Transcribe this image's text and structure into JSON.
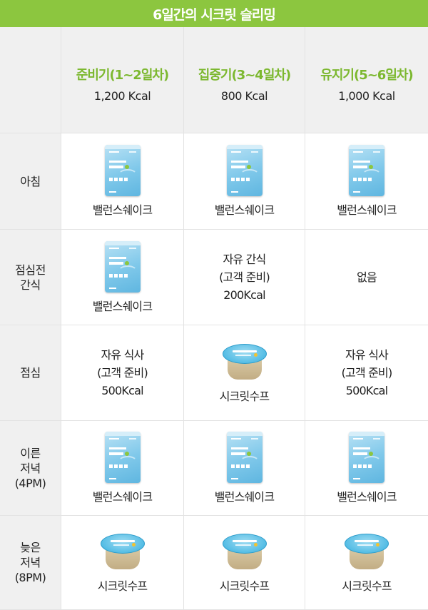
{
  "title": "6일간의 시크릿 슬리밍",
  "phases": [
    {
      "name": "준비기(1~2일차)",
      "kcal": "1,200 Kcal"
    },
    {
      "name": "집중기(3~4일차)",
      "kcal": "800 Kcal"
    },
    {
      "name": "유지기(5~6일차)",
      "kcal": "1,000 Kcal"
    }
  ],
  "rows": [
    {
      "label": [
        "아침"
      ],
      "cells": [
        {
          "kind": "shake",
          "text": "밸런스쉐이크"
        },
        {
          "kind": "shake",
          "text": "밸런스쉐이크"
        },
        {
          "kind": "shake",
          "text": "밸런스쉐이크"
        }
      ]
    },
    {
      "label": [
        "점심전",
        "간식"
      ],
      "cells": [
        {
          "kind": "shake",
          "text": "밸런스쉐이크"
        },
        {
          "kind": "free",
          "lines": [
            "자유 간식",
            "(고객 준비)",
            "200Kcal"
          ]
        },
        {
          "kind": "free",
          "lines": [
            "없음"
          ]
        }
      ]
    },
    {
      "label": [
        "점심"
      ],
      "cells": [
        {
          "kind": "free",
          "lines": [
            "자유 식사",
            "(고객 준비)",
            "500Kcal"
          ]
        },
        {
          "kind": "soup",
          "text": "시크릿수프"
        },
        {
          "kind": "free",
          "lines": [
            "자유 식사",
            "(고객 준비)",
            "500Kcal"
          ]
        }
      ]
    },
    {
      "label": [
        "이른",
        "저녁",
        "(4PM)"
      ],
      "cells": [
        {
          "kind": "shake",
          "text": "밸런스쉐이크"
        },
        {
          "kind": "shake",
          "text": "밸런스쉐이크"
        },
        {
          "kind": "shake",
          "text": "밸런스쉐이크"
        }
      ]
    },
    {
      "label": [
        "늦은",
        "저녁",
        "(8PM)"
      ],
      "cells": [
        {
          "kind": "soup",
          "text": "시크릿수프"
        },
        {
          "kind": "soup",
          "text": "시크릿수프"
        },
        {
          "kind": "soup",
          "text": "시크릿수프"
        }
      ]
    }
  ],
  "colors": {
    "accent": "#8cc63f",
    "phase_text": "#7cb82f",
    "shaded": "#f0f0f0",
    "pouch": "#7fc8ea",
    "soup_lid": "#55bde5"
  },
  "icons": {
    "shake": "balance-shake-pouch-icon",
    "soup": "secret-soup-cup-icon"
  }
}
